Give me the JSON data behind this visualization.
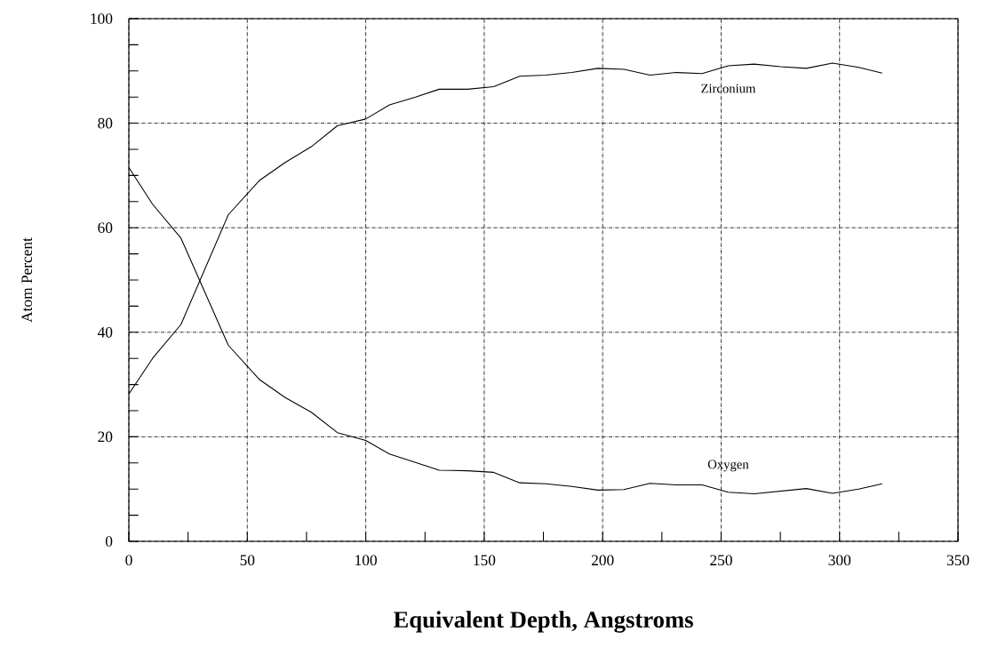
{
  "chart_data": {
    "type": "line",
    "xlabel": "Equivalent Depth, Angstroms",
    "ylabel": "Atom Percent",
    "xlim": [
      0,
      350
    ],
    "ylim": [
      0,
      100
    ],
    "xticks": [
      0,
      {
        "value": 25,
        "label": null
      },
      50,
      {
        "value": 75,
        "label": null
      },
      100,
      {
        "value": 125,
        "label": null
      },
      150,
      {
        "value": 175,
        "label": null
      },
      200,
      {
        "value": 225,
        "label": null
      },
      250,
      {
        "value": 275,
        "label": null
      },
      300,
      {
        "value": 325,
        "label": null
      },
      350
    ],
    "yticks": [
      0,
      {
        "value": 5,
        "label": null
      },
      {
        "value": 10,
        "label": null
      },
      {
        "value": 15,
        "label": null
      },
      20,
      {
        "value": 25,
        "label": null
      },
      {
        "value": 30,
        "label": null
      },
      {
        "value": 35,
        "label": null
      },
      40,
      {
        "value": 45,
        "label": null
      },
      {
        "value": 50,
        "label": null
      },
      {
        "value": 55,
        "label": null
      },
      60,
      {
        "value": 65,
        "label": null
      },
      {
        "value": 70,
        "label": null
      },
      {
        "value": 75,
        "label": null
      },
      80,
      {
        "value": 85,
        "label": null
      },
      {
        "value": 90,
        "label": null
      },
      {
        "value": 95,
        "label": null
      },
      100
    ],
    "grid": true,
    "legend": false,
    "marker": "none",
    "line_style": "solid",
    "x": [
      0,
      10,
      22,
      42,
      55,
      66,
      77,
      88,
      100,
      110,
      121,
      131,
      143,
      154,
      165,
      176,
      187,
      198,
      209,
      220,
      231,
      242,
      253,
      264,
      275,
      286,
      297,
      308,
      318
    ],
    "series": [
      {
        "name": "Zirconium",
        "color": "#000000",
        "values": [
          28.2,
          35,
          41.5,
          62.5,
          69,
          72.5,
          75.5,
          79.5,
          80.8,
          83.5,
          85,
          86.5,
          86.5,
          87,
          89,
          89.2,
          89.7,
          90.5,
          90.3,
          89.2,
          89.7,
          89.5,
          91,
          91.3,
          90.8,
          90.5,
          91.5,
          90.7,
          89.6
        ]
      },
      {
        "name": "Oxygen",
        "color": "#000000",
        "values": [
          71.5,
          64.5,
          58,
          37.5,
          31,
          27.5,
          24.7,
          20.8,
          19.3,
          16.7,
          15.1,
          13.6,
          13.5,
          13.2,
          11.2,
          11,
          10.5,
          9.8,
          9.9,
          11.1,
          10.8,
          10.8,
          9.4,
          9.1,
          9.6,
          10.1,
          9.2,
          10,
          11
        ]
      }
    ]
  }
}
